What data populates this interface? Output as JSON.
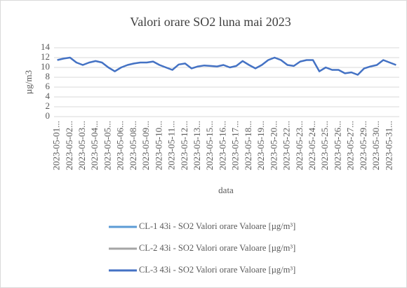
{
  "chart_data": {
    "type": "line",
    "title": "Valori orare SO2 luna mai 2023",
    "y_label": "µg/m3",
    "x_label": "data",
    "categories": [
      "2023-05-01...",
      null,
      "2023-05-02...",
      null,
      "2023-05-03...",
      null,
      "2023-05-04...",
      null,
      "2023-05-05...",
      null,
      "2023-05-06...",
      null,
      "2023-05-08...",
      null,
      "2023-05-09...",
      null,
      "2023-05-10...",
      null,
      "2023-05-11...",
      null,
      "2023-05-12...",
      null,
      "2023-05-13...",
      null,
      "2023-05-15...",
      null,
      "2023-05-16...",
      null,
      "2023-05-17...",
      null,
      "2023-05-18...",
      null,
      "2023-05-19...",
      null,
      "2023-05-20...",
      null,
      "2023-05-22...",
      null,
      "2023-05-23...",
      null,
      "2023-05-24...",
      null,
      "2023-05-25...",
      null,
      "2023-05-26...",
      null,
      "2023-05-27...",
      null,
      "2023-05-29...",
      null,
      "2023-05-30...",
      null,
      "2023-05-31...",
      null
    ],
    "series": [
      {
        "name": "CL-1 43i - SO2 Valori orare Valoare [µg/m³]",
        "color": "#5b9bd5",
        "values": [
          null,
          null,
          null,
          null,
          null,
          null,
          null,
          null,
          null,
          null,
          null,
          null,
          null,
          null,
          null,
          null,
          null,
          null,
          null,
          null,
          null,
          null,
          null,
          null,
          null,
          null,
          null,
          null,
          null,
          null,
          null,
          null,
          null,
          null,
          null,
          null,
          null,
          null,
          null,
          null,
          null,
          null,
          null,
          null,
          null,
          null,
          null,
          null,
          null,
          null,
          null,
          null,
          null,
          null
        ]
      },
      {
        "name": "CL-2 43i - SO2 Valori orare Valoare [µg/m³]",
        "color": "#a5a5a5",
        "values": [
          null,
          null,
          null,
          null,
          null,
          null,
          null,
          null,
          null,
          null,
          null,
          null,
          null,
          null,
          null,
          null,
          null,
          null,
          null,
          null,
          null,
          null,
          null,
          null,
          null,
          null,
          null,
          null,
          null,
          null,
          null,
          null,
          null,
          null,
          null,
          null,
          null,
          null,
          null,
          null,
          null,
          null,
          null,
          null,
          null,
          null,
          null,
          null,
          null,
          null,
          null,
          null,
          null,
          null
        ]
      },
      {
        "name": "CL-3 43i - SO2 Valori orare Valoare [µg/m³]",
        "color": "#4472c4",
        "values": [
          11.5,
          11.8,
          12,
          11,
          10.5,
          11,
          11.3,
          11,
          10,
          9.2,
          10,
          10.5,
          10.8,
          11,
          11,
          11.2,
          10.5,
          10,
          9.5,
          10.6,
          10.8,
          9.8,
          10.2,
          10.4,
          10.3,
          10.2,
          10.5,
          10,
          10.3,
          11.3,
          10.5,
          9.8,
          10.5,
          11.5,
          12,
          11.5,
          10.5,
          10.3,
          11.2,
          11.5,
          11.5,
          9.2,
          10,
          9.5,
          9.5,
          8.8,
          9,
          8.5,
          9.8,
          10.2,
          10.5,
          11.5,
          11,
          10.5
        ]
      }
    ],
    "ylim": [
      0,
      14
    ],
    "yticks": [
      0,
      2,
      4,
      6,
      8,
      10,
      12,
      14
    ],
    "grid": true
  }
}
